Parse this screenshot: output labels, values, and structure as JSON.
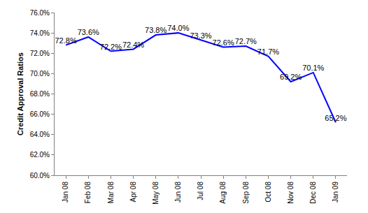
{
  "chart_data": {
    "type": "line",
    "y_label": "Credit Approval Ratios",
    "categories": [
      "Jan 08",
      "Feb 08",
      "Mar 08",
      "Apr 08",
      "May 08",
      "Jun 08",
      "Jul 08",
      "Aug 08",
      "Sep 08",
      "Oct 08",
      "Nov 08",
      "Dec 08",
      "Jan 09"
    ],
    "values": [
      72.8,
      73.6,
      72.2,
      72.4,
      73.8,
      74.0,
      73.3,
      72.6,
      72.7,
      71.7,
      69.2,
      70.1,
      65.2
    ],
    "value_labels": [
      "72.8%",
      "73.6%",
      "72.2%",
      "72.4%",
      "73.8%",
      "74.0%",
      "73.3%",
      "72.6%",
      "72.7%",
      "71.7%",
      "69.2%",
      "70.1%",
      "65.2%"
    ],
    "data_labels": true,
    "color": "#0000ff",
    "ylim": [
      60,
      76
    ],
    "yticks": [
      {
        "value": 60,
        "label": "60.0%"
      },
      {
        "value": 62,
        "label": "62.0%"
      },
      {
        "value": 64,
        "label": "64.0%"
      },
      {
        "value": 66,
        "label": "66.0%"
      },
      {
        "value": 68,
        "label": "68.0%"
      },
      {
        "value": 70,
        "label": "70.0%"
      },
      {
        "value": 72,
        "label": "72.0%"
      },
      {
        "value": 74,
        "label": "74.0%"
      },
      {
        "value": 76,
        "label": "76.0%"
      }
    ],
    "grid": false
  }
}
